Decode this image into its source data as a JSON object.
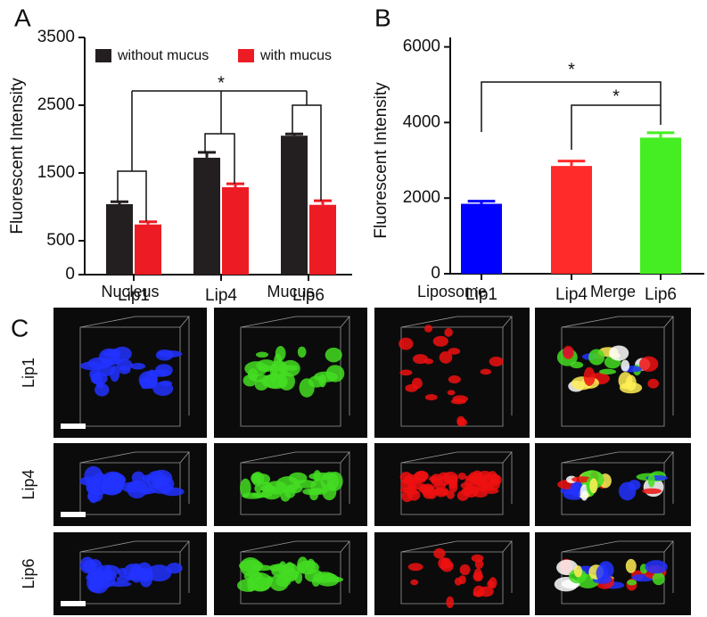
{
  "panel_labels": [
    "A",
    "B",
    "C"
  ],
  "chart_data": [
    {
      "type": "bar",
      "y_label": "Fluorescent Intensity",
      "categories": [
        "Lip1",
        "Lip4",
        "Lip6"
      ],
      "series": [
        {
          "name": "without mucus",
          "color": "#231f20",
          "values": [
            1040,
            1725,
            2050
          ],
          "errors": [
            35,
            80,
            25
          ]
        },
        {
          "name": "with mucus",
          "color": "#ed1c24",
          "values": [
            740,
            1290,
            1030
          ],
          "errors": [
            40,
            50,
            60
          ]
        }
      ],
      "ylim": [
        0,
        3500
      ],
      "yticks": [
        0,
        500,
        1500,
        2500,
        3500
      ],
      "legend": "top",
      "annotations": [
        "*"
      ]
    },
    {
      "type": "bar",
      "y_label": "Fluorescent Intensity",
      "categories": [
        "Lip1",
        "Lip4",
        "Lip6"
      ],
      "values": [
        1850,
        2850,
        3600
      ],
      "errors": [
        70,
        130,
        130
      ],
      "colors": [
        "#0000ff",
        "#ff2a2a",
        "#44ee22"
      ],
      "ylim": [
        0,
        6250
      ],
      "yticks": [
        0,
        2000,
        4000,
        6000
      ],
      "annotations": [
        "*",
        "*"
      ]
    }
  ],
  "image_grid": {
    "columns": [
      "Nucleus",
      "Mucus",
      "Liposome",
      "Merge"
    ],
    "rows": [
      "Lip1",
      "Lip4",
      "Lip6"
    ]
  }
}
